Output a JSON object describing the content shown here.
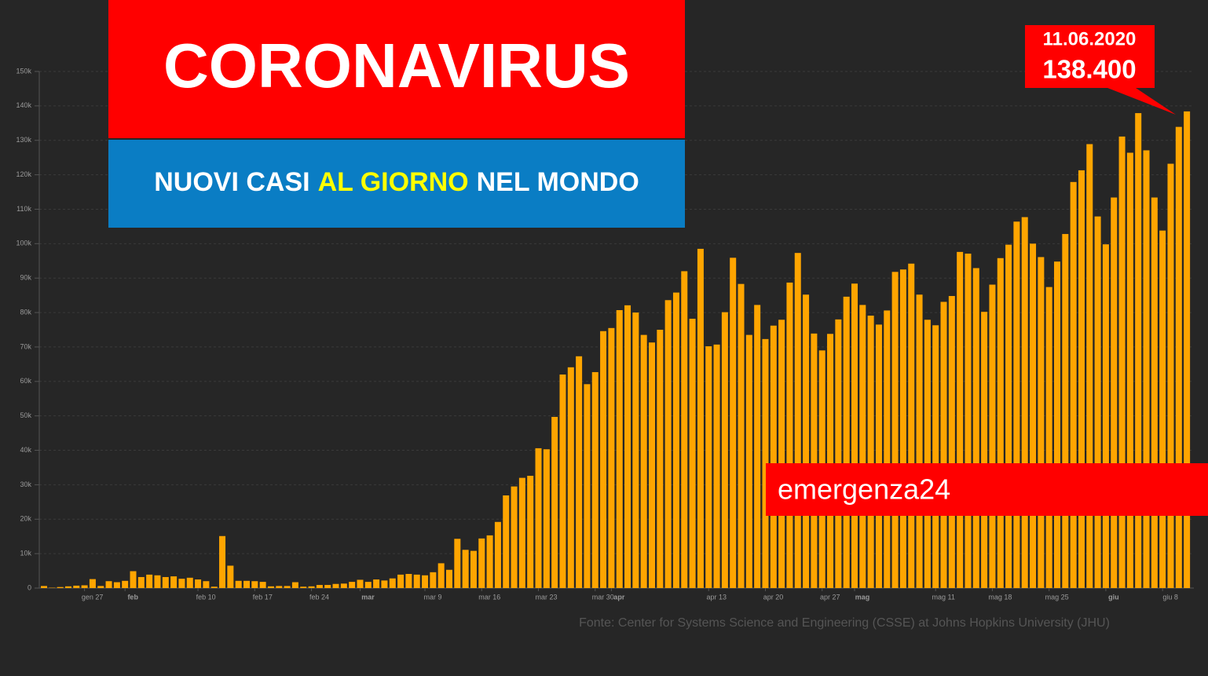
{
  "chart_data": {
    "type": "bar",
    "title": "CORONAVIRUS",
    "subtitle": [
      "NUOVI CASI",
      "AL GIORNO",
      "NEL MONDO"
    ],
    "annotation": {
      "date": "11.06.2020",
      "value": "138.400"
    },
    "brand": "emergenza24",
    "source": "Fonte: Center for Systems Science and Engineering (CSSE) at Johns Hopkins University (JHU)",
    "color": "#ffa500",
    "grid": true,
    "ylim": [
      0,
      150000
    ],
    "yticks": [
      0,
      {
        "value": 10000,
        "label": "10k"
      },
      {
        "value": 20000,
        "label": "20k"
      },
      {
        "value": 30000,
        "label": "30k"
      },
      {
        "value": 40000,
        "label": "40k"
      },
      {
        "value": 50000,
        "label": "50k"
      },
      {
        "value": 60000,
        "label": "60k"
      },
      {
        "value": 70000,
        "label": "70k"
      },
      {
        "value": 80000,
        "label": "80k"
      },
      {
        "value": 90000,
        "label": "90k"
      },
      {
        "value": 100000,
        "label": "100k"
      },
      {
        "value": 110000,
        "label": "110k"
      },
      {
        "value": 120000,
        "label": "120k"
      },
      {
        "value": 130000,
        "label": "130k"
      },
      {
        "value": 140000,
        "label": "140k"
      },
      {
        "value": 150000,
        "label": "150k"
      }
    ],
    "categories": [
      null,
      null,
      null,
      null,
      null,
      "gen 27",
      null,
      null,
      null,
      null,
      "feb",
      null,
      null,
      null,
      null,
      null,
      null,
      null,
      null,
      "feb 10",
      null,
      null,
      null,
      null,
      null,
      null,
      "feb 17",
      null,
      null,
      null,
      null,
      null,
      null,
      "feb 24",
      null,
      null,
      null,
      null,
      null,
      "mar",
      null,
      null,
      null,
      null,
      null,
      null,
      null,
      "mar 9",
      null,
      null,
      null,
      null,
      null,
      null,
      "mar 16",
      null,
      null,
      null,
      null,
      null,
      null,
      "mar 23",
      null,
      null,
      null,
      null,
      null,
      null,
      "mar 30",
      null,
      "apr",
      null,
      null,
      null,
      null,
      null,
      null,
      null,
      null,
      null,
      null,
      null,
      "apr 13",
      null,
      null,
      null,
      null,
      null,
      null,
      "apr 20",
      null,
      null,
      null,
      null,
      null,
      null,
      "apr 27",
      null,
      null,
      null,
      "mag",
      null,
      null,
      null,
      null,
      null,
      null,
      null,
      null,
      null,
      "mag 11",
      null,
      null,
      null,
      null,
      null,
      null,
      "mag 18",
      null,
      null,
      null,
      null,
      null,
      null,
      "mag 25",
      null,
      null,
      null,
      null,
      null,
      null,
      "giu",
      null,
      null,
      null,
      null,
      null,
      null,
      "giu 8",
      null,
      null,
      null
    ],
    "values": [
      600,
      100,
      300,
      500,
      700,
      800,
      2600,
      600,
      2000,
      1700,
      2100,
      4900,
      3200,
      3900,
      3700,
      3200,
      3400,
      2700,
      3000,
      2500,
      2000,
      400,
      15100,
      6500,
      2100,
      2100,
      2000,
      1800,
      500,
      600,
      600,
      1700,
      400,
      500,
      900,
      900,
      1200,
      1300,
      1800,
      2400,
      1800,
      2500,
      2200,
      2800,
      3900,
      4100,
      3900,
      3700,
      4600,
      7200,
      5300,
      14300,
      11100,
      10800,
      14400,
      15300,
      19200,
      26900,
      29500,
      32000,
      32600,
      40600,
      40300,
      49700,
      62000,
      64100,
      67300,
      59200,
      62700,
      74600,
      75500,
      80700,
      82100,
      80000,
      73500,
      71300,
      75000,
      83600,
      85800,
      92000,
      78200,
      98500,
      70200,
      70700,
      80100,
      95900,
      88300,
      73500,
      82200,
      72300,
      76200,
      77900,
      88700,
      97300,
      85200,
      73900,
      69000,
      73800,
      78000,
      84600,
      88400,
      82200,
      79100,
      76500,
      80600,
      91800,
      92500,
      94200,
      85200,
      77900,
      76300,
      83100,
      84800,
      97600,
      97100,
      92900,
      80200,
      88100,
      95800,
      99700,
      106400,
      107700,
      100000,
      96100,
      87400,
      94800,
      102800,
      117900,
      121300,
      128900,
      107900,
      99800,
      113400,
      131100,
      126400,
      137900,
      127100,
      113400,
      103800,
      123200,
      133900,
      138400
    ]
  }
}
